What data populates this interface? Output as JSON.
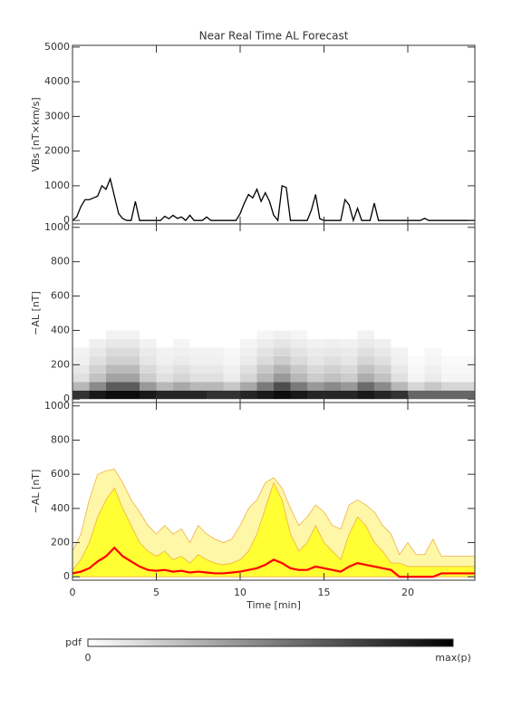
{
  "chart_data": [
    {
      "type": "line",
      "title": "Near Real Time AL Forecast",
      "ylabel": "VBs [nT×km/s]",
      "xlim": [
        0,
        24
      ],
      "xticks": [
        0,
        5,
        10,
        15,
        20
      ],
      "ylim": [
        -100,
        5050
      ],
      "yticks": [
        0,
        1000,
        2000,
        3000,
        4000,
        5000
      ],
      "color": "#000000",
      "x": [
        0,
        0.25,
        0.5,
        0.75,
        1,
        1.25,
        1.5,
        1.75,
        2,
        2.25,
        2.5,
        2.75,
        3,
        3.25,
        3.5,
        3.75,
        4,
        4.25,
        4.5,
        4.75,
        5,
        5.25,
        5.5,
        5.75,
        6,
        6.25,
        6.5,
        6.75,
        7,
        7.25,
        7.5,
        7.75,
        8,
        8.25,
        8.5,
        8.75,
        9,
        9.25,
        9.5,
        9.75,
        10,
        10.25,
        10.5,
        10.75,
        11,
        11.25,
        11.5,
        11.75,
        12,
        12.25,
        12.5,
        12.75,
        13,
        13.25,
        13.5,
        13.75,
        14,
        14.25,
        14.5,
        14.75,
        15,
        15.25,
        15.5,
        15.75,
        16,
        16.25,
        16.5,
        16.75,
        17,
        17.25,
        17.5,
        17.75,
        18,
        18.25,
        18.5,
        18.75,
        19,
        19.25,
        19.5,
        19.75,
        20,
        20.25,
        20.5,
        20.75,
        21,
        21.25,
        21.5,
        21.75,
        22,
        22.25,
        22.5,
        22.75,
        23,
        23.25,
        23.5,
        23.75,
        24
      ],
      "values": [
        0,
        100,
        400,
        600,
        600,
        650,
        700,
        1000,
        900,
        1200,
        700,
        200,
        50,
        0,
        0,
        550,
        0,
        0,
        0,
        0,
        0,
        0,
        120,
        50,
        150,
        60,
        100,
        0,
        150,
        0,
        0,
        0,
        100,
        0,
        0,
        0,
        0,
        0,
        0,
        0,
        200,
        500,
        750,
        650,
        900,
        550,
        800,
        550,
        150,
        0,
        1000,
        950,
        0,
        0,
        0,
        0,
        0,
        300,
        750,
        50,
        0,
        0,
        0,
        0,
        0,
        600,
        450,
        0,
        350,
        0,
        0,
        0,
        500,
        0,
        0,
        0,
        0,
        0,
        0,
        0,
        0,
        0,
        0,
        0,
        60,
        0,
        0,
        0,
        0,
        0,
        0,
        0,
        0,
        0,
        0,
        0,
        0
      ]
    },
    {
      "type": "heatmap",
      "ylabel": "−AL [nT]",
      "xlim": [
        0,
        24
      ],
      "xticks": [
        0,
        5,
        10,
        15,
        20
      ],
      "ylim": [
        -20,
        1020
      ],
      "yticks": [
        0,
        200,
        400,
        600,
        800,
        1000
      ],
      "xbins": [
        0,
        1,
        2,
        3,
        4,
        5,
        6,
        7,
        8,
        9,
        10,
        11,
        12,
        13,
        14,
        15,
        16,
        17,
        18,
        19,
        20,
        21,
        22,
        23,
        24
      ],
      "ybins": [
        0,
        50,
        100,
        150,
        200,
        250,
        300,
        350,
        400
      ],
      "z": [
        [
          0.8,
          0.9,
          0.95,
          0.95,
          0.9,
          0.85,
          0.85,
          0.85,
          0.8,
          0.8,
          0.85,
          0.9,
          0.95,
          0.9,
          0.85,
          0.85,
          0.85,
          0.9,
          0.85,
          0.8,
          0.6,
          0.6,
          0.6,
          0.6
        ],
        [
          0.28,
          0.46,
          0.64,
          0.64,
          0.4,
          0.28,
          0.34,
          0.28,
          0.28,
          0.22,
          0.34,
          0.52,
          0.7,
          0.52,
          0.4,
          0.46,
          0.4,
          0.58,
          0.46,
          0.28,
          0.16,
          0.22,
          0.16,
          0.16
        ],
        [
          0.12,
          0.24,
          0.36,
          0.36,
          0.2,
          0.12,
          0.16,
          0.12,
          0.12,
          0.08,
          0.16,
          0.28,
          0.4,
          0.28,
          0.2,
          0.24,
          0.2,
          0.32,
          0.24,
          0.12,
          0.04,
          0.08,
          0.04,
          0.04
        ],
        [
          0.09,
          0.18,
          0.27,
          0.27,
          0.15,
          0.09,
          0.12,
          0.09,
          0.09,
          0.06,
          0.12,
          0.21,
          0.3,
          0.21,
          0.15,
          0.18,
          0.15,
          0.24,
          0.18,
          0.09,
          0.03,
          0.06,
          0.03,
          0.03
        ],
        [
          0.06,
          0.12,
          0.18,
          0.18,
          0.1,
          0.06,
          0.08,
          0.06,
          0.06,
          0.04,
          0.08,
          0.14,
          0.2,
          0.14,
          0.1,
          0.12,
          0.1,
          0.16,
          0.12,
          0.06,
          0.02,
          0.04,
          0.02,
          0.02
        ],
        [
          0.05,
          0.09,
          0.14,
          0.14,
          0.08,
          0.05,
          0.06,
          0.05,
          0.05,
          0.03,
          0.06,
          0.11,
          0.15,
          0.11,
          0.08,
          0.09,
          0.08,
          0.12,
          0.09,
          0.05,
          0,
          0.03,
          0,
          0
        ],
        [
          0,
          0.06,
          0.09,
          0.09,
          0.05,
          0,
          0.04,
          0,
          0,
          0,
          0.04,
          0.07,
          0.1,
          0.07,
          0.05,
          0.06,
          0.05,
          0.08,
          0.06,
          0,
          0,
          0,
          0,
          0
        ],
        [
          0,
          0,
          0.05,
          0.05,
          0,
          0,
          0,
          0,
          0,
          0,
          0,
          0.04,
          0.06,
          0.04,
          0,
          0,
          0,
          0.05,
          0,
          0,
          0,
          0,
          0,
          0
        ]
      ]
    },
    {
      "type": "area",
      "ylabel": "−AL [nT]",
      "xlabel": "Time [min]",
      "xlim": [
        0,
        24
      ],
      "xticks": [
        0,
        5,
        10,
        15,
        20
      ],
      "ylim": [
        -20,
        1020
      ],
      "yticks": [
        0,
        200,
        400,
        600,
        800,
        1000
      ],
      "x": [
        0,
        0.5,
        1,
        1.5,
        2,
        2.5,
        3,
        3.5,
        4,
        4.5,
        5,
        5.5,
        6,
        6.5,
        7,
        7.5,
        8,
        8.5,
        9,
        9.5,
        10,
        10.5,
        11,
        11.5,
        12,
        12.5,
        13,
        13.5,
        14,
        14.5,
        15,
        15.5,
        16,
        16.5,
        17,
        17.5,
        18,
        18.5,
        19,
        19.5,
        20,
        20.5,
        21,
        21.5,
        22,
        22.5,
        23,
        23.5,
        24
      ],
      "series": [
        {
          "type": "area",
          "color": "#fff7a8",
          "edge": "#f0b040",
          "values": [
            150,
            250,
            450,
            600,
            620,
            630,
            550,
            450,
            380,
            300,
            250,
            300,
            250,
            280,
            200,
            300,
            250,
            220,
            200,
            220,
            300,
            400,
            450,
            550,
            580,
            520,
            400,
            300,
            350,
            420,
            380,
            300,
            280,
            420,
            450,
            420,
            380,
            300,
            250,
            130,
            200,
            130,
            130,
            220,
            120,
            120,
            120,
            120,
            120
          ]
        },
        {
          "type": "area",
          "color": "#ffff33",
          "edge": "#f0b040",
          "values": [
            40,
            100,
            200,
            350,
            450,
            520,
            400,
            300,
            200,
            150,
            120,
            150,
            100,
            120,
            80,
            130,
            100,
            80,
            70,
            80,
            100,
            150,
            250,
            400,
            550,
            450,
            250,
            150,
            200,
            300,
            200,
            150,
            100,
            250,
            350,
            300,
            200,
            150,
            80,
            80,
            60,
            60,
            60,
            60,
            60,
            60,
            60,
            60,
            60
          ]
        },
        {
          "type": "line",
          "color": "#ff0000",
          "values": [
            20,
            30,
            50,
            90,
            120,
            170,
            120,
            90,
            60,
            40,
            35,
            40,
            30,
            35,
            25,
            30,
            25,
            20,
            20,
            25,
            30,
            40,
            50,
            70,
            100,
            80,
            50,
            40,
            40,
            60,
            50,
            40,
            30,
            60,
            80,
            70,
            60,
            50,
            40,
            0,
            0,
            0,
            0,
            0,
            20,
            20,
            20,
            20,
            20
          ]
        }
      ]
    }
  ],
  "colorbar": {
    "label": "pdf",
    "ticks": [
      "0",
      "max(p)"
    ]
  }
}
